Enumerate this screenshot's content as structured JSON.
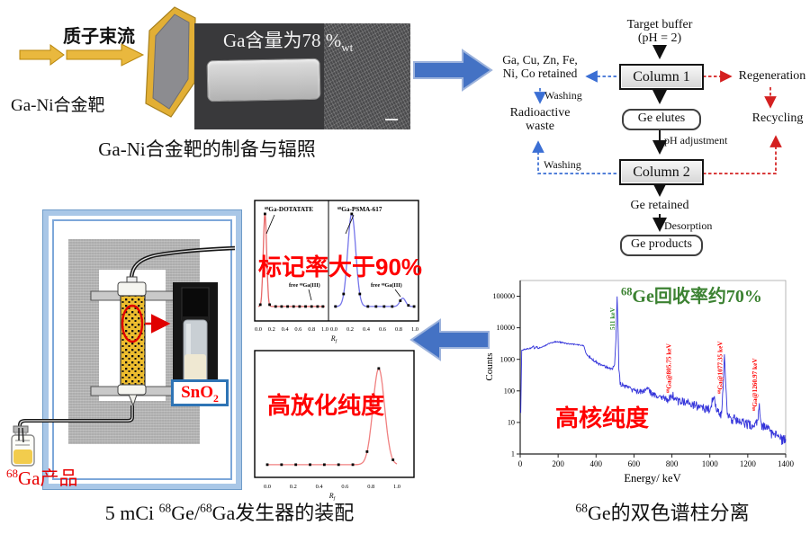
{
  "panel_target": {
    "beam_label": "质子束流",
    "target_label": "Ga-Ni合金靶",
    "photo": {
      "main": "Ga含量为78 %",
      "sub": "wt"
    },
    "caption": "Ga-Ni合金靶的制备与辐照"
  },
  "flowchart": {
    "target_buffer_line1": "Target buffer",
    "target_buffer_line2": "(pH = 2)",
    "column1": "Column 1",
    "column2": "Column 2",
    "retained_line1": "Ga, Cu, Zn, Fe,",
    "retained_line2": "Ni, Co retained",
    "washing1": "Washing",
    "washing2": "Washing",
    "radioactive_line1": "Radioactive",
    "radioactive_line2": "waste",
    "regeneration": "Regeneration",
    "recycling": "Recycling",
    "ge_elutes": "Ge elutes",
    "ph_adjustment": "pH adjustment",
    "ge_retained": "Ge retained",
    "desorption": "Desorption",
    "ge_products": "Ge products"
  },
  "generator": {
    "sno2": {
      "main": "SnO",
      "sub": "2"
    },
    "product": {
      "sup": "68",
      "text": "Ga产品"
    }
  },
  "captions": {
    "generator": {
      "pre": "5 mCi ",
      "sup1": "68",
      "mid": "Ge/",
      "sup2": "68",
      "tail": "Ga发生器的装配"
    },
    "separation": {
      "sup": "68",
      "text": "Ge的双色谱柱分离"
    }
  },
  "chart_data": [
    {
      "id": "tlc_radiolabeling",
      "type": "line",
      "annotation": "标记率大于90%",
      "xlabel_main": "R",
      "xlabel_sub": "f",
      "x_ticks": [
        "0.0",
        "0.2",
        "0.4",
        "0.6",
        "0.8",
        "1.0"
      ],
      "panels": [
        {
          "name": "⁶⁸Ga-DOTATATE",
          "free_label": "free ⁶⁸Ga(III)",
          "color": "#e86a6a",
          "base": 0.02,
          "peaks": [
            {
              "c": 0.1,
              "s": 0.025,
              "h": 1.0
            }
          ],
          "markers": [
            0.03,
            0.1,
            0.17,
            0.26,
            0.35,
            0.44,
            0.53,
            0.62,
            0.71,
            0.8,
            0.89,
            0.97
          ]
        },
        {
          "name": "⁶⁸Ga-PSMA-617",
          "free_label": "free ⁶⁸Ga(III)",
          "color": "#7676ea",
          "base": 0.02,
          "peaks": [
            {
              "c": 0.22,
              "s": 0.05,
              "h": 1.0
            },
            {
              "c": 0.85,
              "s": 0.035,
              "h": 0.09
            }
          ],
          "markers": [
            0.02,
            0.12,
            0.22,
            0.32,
            0.42,
            0.52,
            0.62,
            0.72,
            0.82,
            0.92,
            0.99
          ]
        }
      ]
    },
    {
      "id": "tlc_purity",
      "type": "line",
      "annotation": "高放化纯度",
      "xlabel_main": "R",
      "xlabel_sub": "f",
      "x_ticks": [
        "0.0",
        "0.2",
        "0.4",
        "0.6",
        "0.8",
        "1.0"
      ],
      "color": "#f08080",
      "base": 0.02,
      "peaks": [
        {
          "c": 0.86,
          "s": 0.045,
          "h": 1.0
        }
      ],
      "markers": [
        0.0,
        0.11,
        0.22,
        0.33,
        0.44,
        0.55,
        0.66,
        0.77,
        0.86,
        0.97
      ]
    },
    {
      "id": "gamma_spectrum",
      "type": "line",
      "xlabel": "Energy/ keV",
      "ylabel": "Counts",
      "yscale": "log",
      "xlim": [
        0,
        1400
      ],
      "x_ticks": [
        0,
        200,
        400,
        600,
        800,
        1000,
        1200,
        1400
      ],
      "y_ticks": [
        1,
        10,
        100,
        1000,
        10000,
        100000
      ],
      "line_color": "#2828d8",
      "annotation_recovery": {
        "sup": "68",
        "text": "Ge回收率约70%"
      },
      "annotation_nuclear": "高核纯度",
      "peaks": [
        {
          "keV": 511,
          "label": "511 keV",
          "color": "#2E8B2E"
        },
        {
          "keV": 805.75,
          "label": "⁶⁸Ga@805.75 keV",
          "color": "#ff0000"
        },
        {
          "keV": 1077.35,
          "label": "⁶⁸Ga@1077.35 keV",
          "color": "#ff0000"
        },
        {
          "keV": 1260.97,
          "label": "⁶⁸Ga@1260.97 keV",
          "color": "#ff0000"
        }
      ],
      "points": [
        [
          3,
          25
        ],
        [
          8,
          1900
        ],
        [
          18,
          2050
        ],
        [
          35,
          2150
        ],
        [
          55,
          2250
        ],
        [
          70,
          2650
        ],
        [
          75,
          2250
        ],
        [
          88,
          2500
        ],
        [
          95,
          2250
        ],
        [
          115,
          2450
        ],
        [
          145,
          3050
        ],
        [
          180,
          3600
        ],
        [
          210,
          3500
        ],
        [
          245,
          3150
        ],
        [
          280,
          3000
        ],
        [
          315,
          2850
        ],
        [
          335,
          2750
        ],
        [
          345,
          1650
        ],
        [
          362,
          1200
        ],
        [
          390,
          880
        ],
        [
          425,
          660
        ],
        [
          460,
          550
        ],
        [
          485,
          505
        ],
        [
          498,
          640
        ],
        [
          505,
          4500
        ],
        [
          511,
          100000
        ],
        [
          516,
          9000
        ],
        [
          520,
          500
        ],
        [
          527,
          180
        ],
        [
          542,
          145
        ],
        [
          562,
          128
        ],
        [
          588,
          112
        ],
        [
          615,
          102
        ],
        [
          640,
          94
        ],
        [
          662,
          108
        ],
        [
          678,
          118
        ],
        [
          688,
          88
        ],
        [
          710,
          72
        ],
        [
          733,
          64
        ],
        [
          758,
          58
        ],
        [
          782,
          55
        ],
        [
          800,
          62
        ],
        [
          806,
          82
        ],
        [
          813,
          53
        ],
        [
          836,
          49
        ],
        [
          860,
          46
        ],
        [
          884,
          42
        ],
        [
          910,
          38
        ],
        [
          938,
          34
        ],
        [
          968,
          30
        ],
        [
          1000,
          27
        ],
        [
          1014,
          55
        ],
        [
          1024,
          72
        ],
        [
          1031,
          32
        ],
        [
          1046,
          21
        ],
        [
          1060,
          17
        ],
        [
          1070,
          130
        ],
        [
          1077,
          1500
        ],
        [
          1084,
          160
        ],
        [
          1092,
          19
        ],
        [
          1110,
          14
        ],
        [
          1140,
          12
        ],
        [
          1172,
          10
        ],
        [
          1205,
          9
        ],
        [
          1235,
          8
        ],
        [
          1252,
          10
        ],
        [
          1261,
          42
        ],
        [
          1269,
          8
        ],
        [
          1292,
          7
        ],
        [
          1320,
          5
        ],
        [
          1352,
          4
        ],
        [
          1382,
          3
        ],
        [
          1400,
          3
        ]
      ]
    }
  ]
}
